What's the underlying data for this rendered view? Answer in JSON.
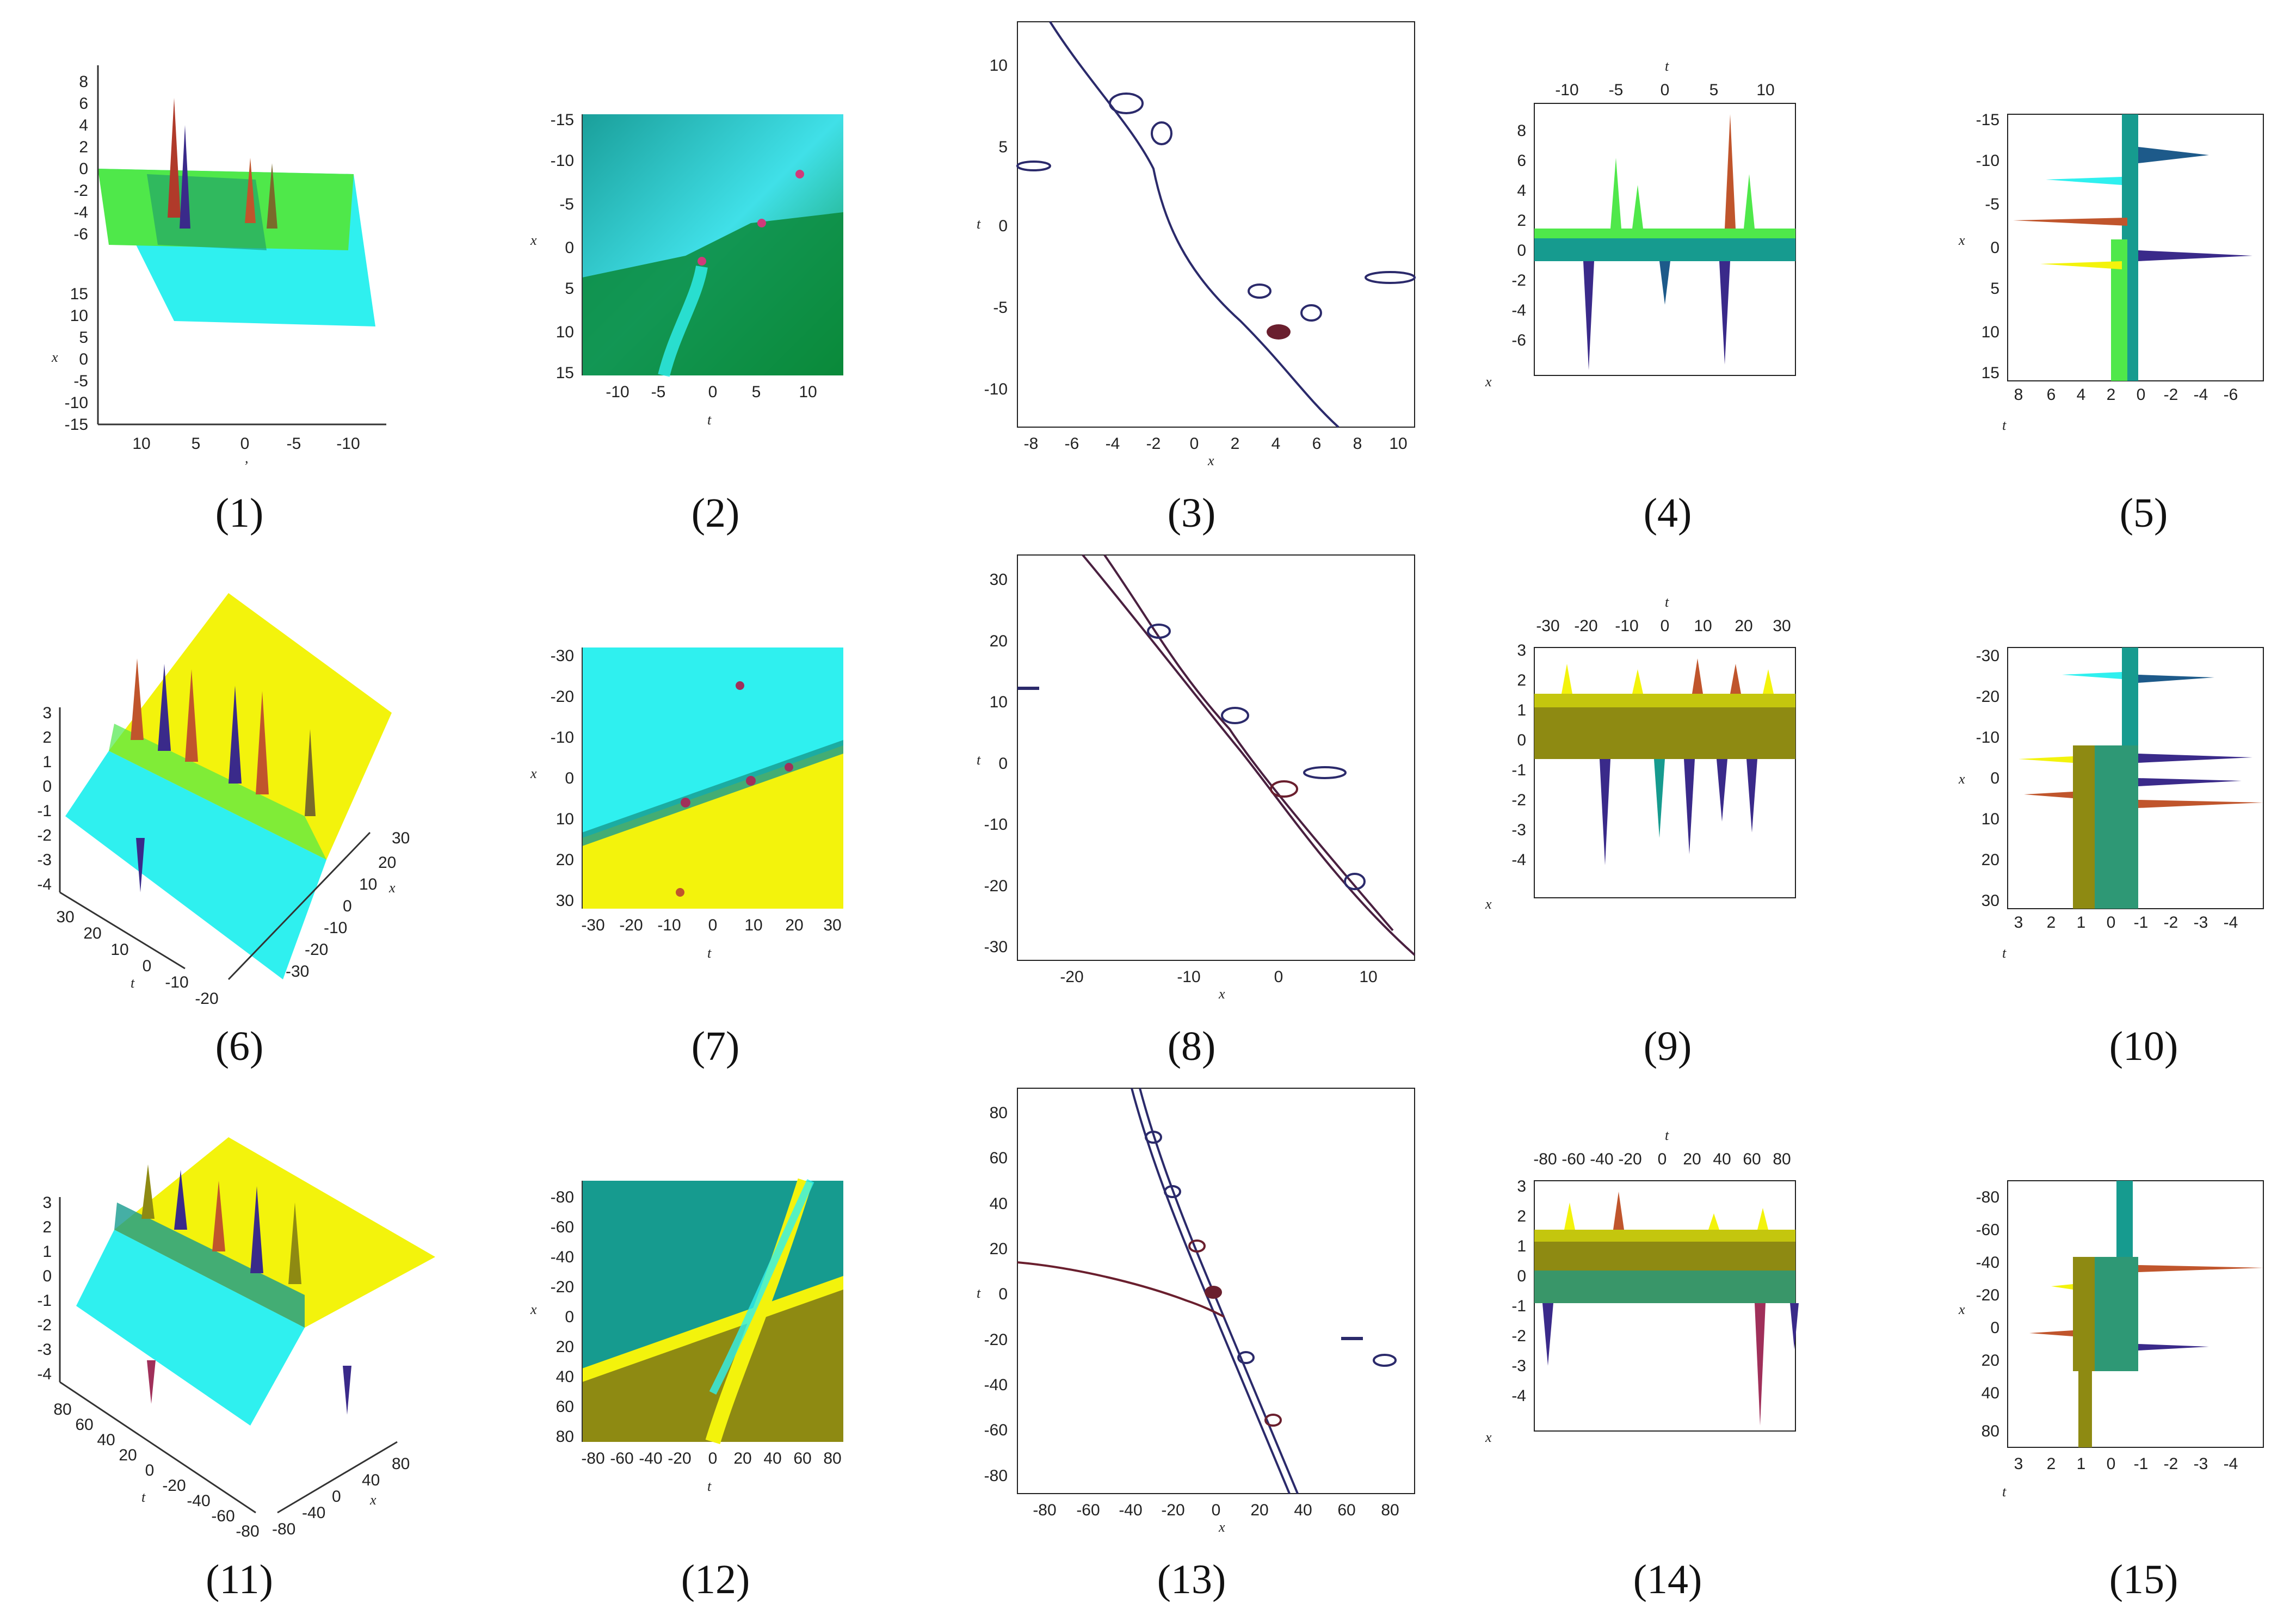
{
  "figure": {
    "captions": [
      "(1)",
      "(2)",
      "(3)",
      "(4)",
      "(5)",
      "(6)",
      "(7)",
      "(8)",
      "(9)",
      "(10)",
      "(11)",
      "(12)",
      "(13)",
      "(14)",
      "(15)"
    ]
  },
  "axes": {
    "x": "x",
    "t": "t",
    "comma": ","
  },
  "ticks": {
    "p1_z": [
      "8",
      "6",
      "4",
      "2",
      "0",
      "-2",
      "-4",
      "-6"
    ],
    "p1_x": [
      "15",
      "10",
      "5",
      "0",
      "-5",
      "-10",
      "-15"
    ],
    "p1_t": [
      "10",
      "5",
      "0",
      "-5",
      "-10"
    ],
    "p2_y": [
      "-15",
      "-10",
      "-5",
      "0",
      "5",
      "10",
      "15"
    ],
    "p2_x": [
      "-10",
      "-5",
      "0",
      "5",
      "10"
    ],
    "p3_y": [
      "10",
      "5",
      "0",
      "-5",
      "-10"
    ],
    "p3_x": [
      "-8",
      "-6",
      "-4",
      "-2",
      "0",
      "2",
      "4",
      "6",
      "8",
      "10"
    ],
    "p4_top": [
      "-10",
      "-5",
      "0",
      "5",
      "10"
    ],
    "p4_y": [
      "8",
      "6",
      "4",
      "2",
      "0",
      "-2",
      "-4",
      "-6"
    ],
    "p5_y": [
      "-15",
      "-10",
      "-5",
      "0",
      "5",
      "10",
      "15"
    ],
    "p5_x": [
      "8",
      "6",
      "4",
      "2",
      "0",
      "-2",
      "-4",
      "-6"
    ],
    "p6_z": [
      "3",
      "2",
      "1",
      "0",
      "-1",
      "-2",
      "-3",
      "-4"
    ],
    "p6_t": [
      "30",
      "20",
      "10",
      "0",
      "-10",
      "-20"
    ],
    "p6_x": [
      "30",
      "20",
      "10",
      "0",
      "-10",
      "-20",
      "-30"
    ],
    "p7_y": [
      "-30",
      "-20",
      "-10",
      "0",
      "10",
      "20",
      "30"
    ],
    "p7_x": [
      "-30",
      "-20",
      "-10",
      "0",
      "10",
      "20",
      "30"
    ],
    "p8_y": [
      "30",
      "20",
      "10",
      "0",
      "-10",
      "-20",
      "-30"
    ],
    "p8_x": [
      "-20",
      "-10",
      "0",
      "10"
    ],
    "p9_top": [
      "-30",
      "-20",
      "-10",
      "0",
      "10",
      "20",
      "30"
    ],
    "p9_y": [
      "3",
      "2",
      "1",
      "0",
      "-1",
      "-2",
      "-3",
      "-4"
    ],
    "p10_y": [
      "-30",
      "-20",
      "-10",
      "0",
      "10",
      "20",
      "30"
    ],
    "p10_x": [
      "3",
      "2",
      "1",
      "0",
      "-1",
      "-2",
      "-3",
      "-4"
    ],
    "p11_z": [
      "3",
      "2",
      "1",
      "0",
      "-1",
      "-2",
      "-3",
      "-4"
    ],
    "p11_t": [
      "80",
      "60",
      "40",
      "20",
      "0",
      "-20",
      "-40",
      "-60",
      "-80"
    ],
    "p11_x": [
      "80",
      "40",
      "0",
      "-40",
      "-80"
    ],
    "p12_y": [
      "-80",
      "-60",
      "-40",
      "-20",
      "0",
      "20",
      "40",
      "60",
      "80"
    ],
    "p12_x": [
      "-80",
      "-60",
      "-40",
      "-20",
      "0",
      "20",
      "40",
      "60",
      "80"
    ],
    "p13_y": [
      "80",
      "60",
      "40",
      "20",
      "0",
      "-20",
      "-40",
      "-60",
      "-80"
    ],
    "p13_x": [
      "-80",
      "-60",
      "-40",
      "-20",
      "0",
      "20",
      "40",
      "60",
      "80"
    ],
    "p14_top": [
      "-80",
      "-60",
      "-40",
      "-20",
      "0",
      "20",
      "40",
      "60",
      "80"
    ],
    "p14_y": [
      "3",
      "2",
      "1",
      "0",
      "-1",
      "-2",
      "-3",
      "-4"
    ],
    "p15_y": [
      "-80",
      "-60",
      "-40",
      "-20",
      "0",
      "20",
      "40",
      "80"
    ],
    "p15_x": [
      "3",
      "2",
      "1",
      "0",
      "-1",
      "-2",
      "-3",
      "-4"
    ]
  },
  "colors": {
    "green": "#4fe84a",
    "cyan": "#2ff0ef",
    "teal": "#169b8f",
    "darkgreen": "#0a8a3a",
    "yellow": "#f3f30c",
    "olive": "#8e8a12",
    "contour": "#2b2a6b",
    "contour_red": "#6a1f2e"
  }
}
